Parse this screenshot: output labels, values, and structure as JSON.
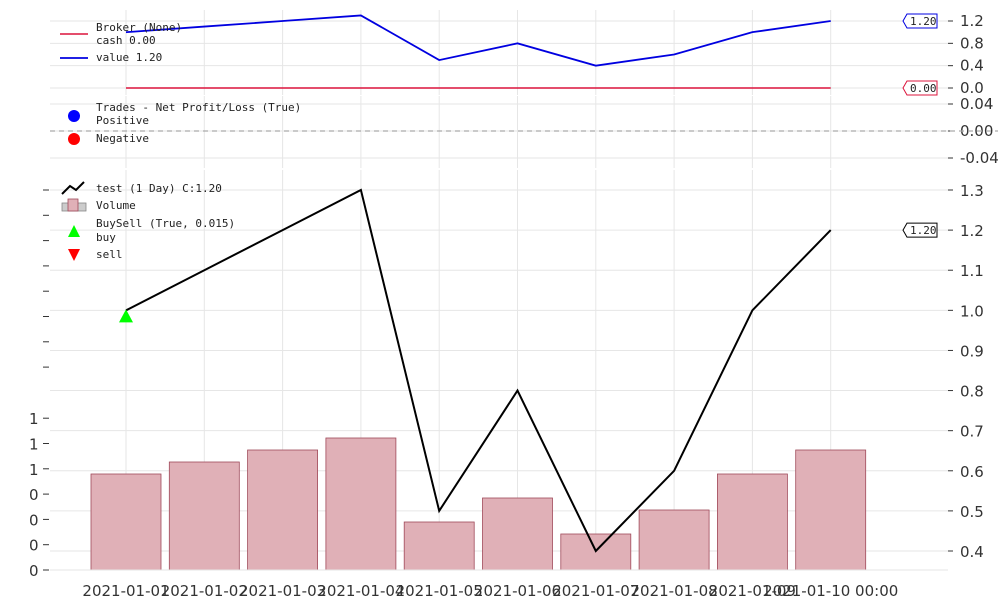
{
  "chart_data": [
    {
      "type": "line",
      "panel": "broker",
      "x": [
        "2021-01-01",
        "2021-01-02",
        "2021-01-03",
        "2021-01-04",
        "2021-01-05",
        "2021-01-06",
        "2021-01-07",
        "2021-01-08",
        "2021-01-09",
        "2021-01-10"
      ],
      "series": [
        {
          "name": "cash 0.00",
          "color": "#dc143c",
          "values": [
            0,
            0,
            0,
            0,
            0,
            0,
            0,
            0,
            0,
            0
          ]
        },
        {
          "name": "value 1.20",
          "color": "#0000e0",
          "values": [
            1.0,
            1.1,
            1.2,
            1.3,
            0.5,
            0.8,
            0.4,
            0.6,
            1.0,
            1.2
          ]
        }
      ],
      "legend_title": "Broker (None)",
      "yticks": [
        "0.0",
        "0.4",
        "0.8",
        "1.2"
      ],
      "ylim": [
        -0.1,
        1.35
      ],
      "last_value_tags": [
        {
          "text": "1.20",
          "color": "#0000e0",
          "value": 1.2
        },
        {
          "text": "0.00",
          "color": "#dc143c",
          "value": 0.0
        }
      ]
    },
    {
      "type": "scatter",
      "panel": "trades",
      "legend_title": "Trades - Net Profit/Loss (True)",
      "series": [
        {
          "name": "Positive",
          "color": "#0000ff",
          "values": []
        },
        {
          "name": "Negative",
          "color": "#ff0000",
          "values": []
        }
      ],
      "yticks": [
        "0.04",
        "0.00",
        "-0.04"
      ],
      "ylim": [
        -0.05,
        0.05
      ],
      "zero_line": true
    },
    {
      "type": "line",
      "panel": "price",
      "x": [
        "2021-01-01",
        "2021-01-02",
        "2021-01-03",
        "2021-01-04",
        "2021-01-05",
        "2021-01-06",
        "2021-01-07",
        "2021-01-08",
        "2021-01-09",
        "2021-01-10"
      ],
      "series": [
        {
          "name": "test (1 Day) C:1.20",
          "color": "#000000",
          "values": [
            1.0,
            1.1,
            1.2,
            1.3,
            0.5,
            0.8,
            0.4,
            0.6,
            1.0,
            1.2
          ]
        }
      ],
      "volume": {
        "name": "Volume",
        "color": "#e0b0b7",
        "edge": "#a04a5a",
        "values": [
          0.8,
          0.9,
          1.0,
          1.1,
          0.4,
          0.6,
          0.3,
          0.5,
          0.8,
          1.0
        ],
        "ylim": [
          0,
          1.6
        ],
        "yticks": [
          "0",
          "0",
          "0",
          "0",
          "1",
          "1",
          "1"
        ]
      },
      "buysell_title": "BuySell (True, 0.015)",
      "markers": [
        {
          "name": "buy",
          "color": "#00ff00",
          "index": 0,
          "value": 0.985
        },
        {
          "name": "sell",
          "color": "#ff0000",
          "index": null,
          "value": null
        }
      ],
      "yticks": [
        "0.4",
        "0.5",
        "0.6",
        "0.7",
        "0.8",
        "0.9",
        "1.0",
        "1.1",
        "1.2",
        "1.3"
      ],
      "ylim": [
        0.36,
        1.35
      ],
      "last_value_tag": {
        "text": "1.20",
        "color": "#000000",
        "value": 1.2
      }
    }
  ],
  "xaxis_labels": [
    "2021-01-01",
    "2021-01-02",
    "2021-01-03",
    "2021-01-04",
    "2021-01-05",
    "2021-01-06",
    "2021-01-07",
    "2021-01-08",
    "2021-01-09",
    "2021-01-10 00:00"
  ],
  "legend": {
    "broker_title": "Broker (None)",
    "cash": "cash 0.00",
    "value": "value 1.20",
    "trades_title": "Trades - Net Profit/Loss (True)",
    "positive": "Positive",
    "negative": "Negative",
    "price": "test (1 Day) C:1.20",
    "volume": "Volume",
    "buysell": "BuySell (True, 0.015)",
    "buy": "buy",
    "sell": "sell"
  }
}
